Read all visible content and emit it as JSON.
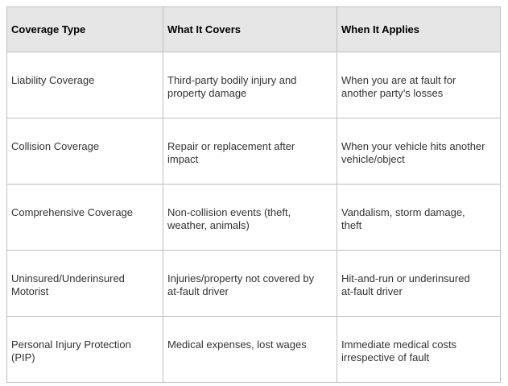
{
  "colors": {
    "header_background": "#e6e6e6",
    "border": "#bfbfbf",
    "header_text": "#000000",
    "body_text": "#333333",
    "page_background": "#ffffff"
  },
  "table": {
    "columns": [
      "Coverage Type",
      "What It Covers",
      "When It Applies"
    ],
    "rows": [
      [
        "Liability Coverage",
        "Third-party bodily injury and\nproperty damage",
        "When you are at fault for\nanother party’s losses"
      ],
      [
        "Collision Coverage",
        "Repair or replacement after\nimpact",
        "When your vehicle hits another\nvehicle/object"
      ],
      [
        "Comprehensive Coverage",
        "Non-collision events (theft,\nweather, animals)",
        "Vandalism, storm damage,\ntheft"
      ],
      [
        "Uninsured/Underinsured\nMotorist",
        "Injuries/property not covered by\nat-fault driver",
        "Hit-and-run or underinsured\nat-fault driver"
      ],
      [
        "Personal Injury Protection\n(PIP)",
        "Medical expenses, lost wages",
        "Immediate medical costs\nirrespective of fault"
      ]
    ]
  }
}
